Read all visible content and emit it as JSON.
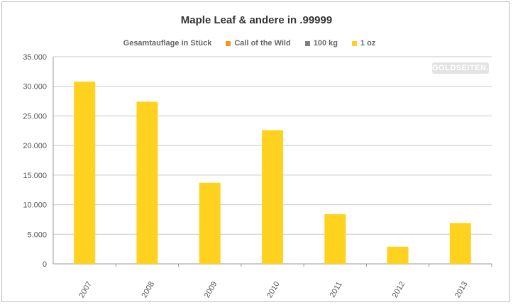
{
  "chart_data": {
    "type": "bar",
    "title": "Maple Leaf & andere in .99999",
    "legend_title": "Gesamtauflage in Stück",
    "legend": [
      {
        "name": "Call of the Wild",
        "color": "#f7941d"
      },
      {
        "name": "100 kg",
        "color": "#7f7f7f"
      },
      {
        "name": "1 oz",
        "color": "#ffd21f"
      }
    ],
    "categories": [
      "2007",
      "2008",
      "2009",
      "2010",
      "2011",
      "2012",
      "2013"
    ],
    "series": [
      {
        "name": "Call of the Wild",
        "values": [
          0,
          0,
          0,
          0,
          0,
          0,
          0
        ]
      },
      {
        "name": "100 kg",
        "values": [
          0,
          0,
          0,
          0,
          0,
          0,
          0
        ]
      },
      {
        "name": "1 oz",
        "values": [
          30800,
          27400,
          13700,
          22600,
          8400,
          2900,
          6900
        ]
      }
    ],
    "ylim": [
      0,
      35000
    ],
    "yticks": [
      "0",
      "5.000",
      "10.000",
      "15.000",
      "20.000",
      "25.000",
      "30.000",
      "35.000"
    ],
    "grid": true,
    "legend_position": "top"
  },
  "watermark": "GOLDSEITEN.DE",
  "colors": {
    "bar": "#ffd21f",
    "grid": "#c8c8c8",
    "axis": "#999999"
  }
}
